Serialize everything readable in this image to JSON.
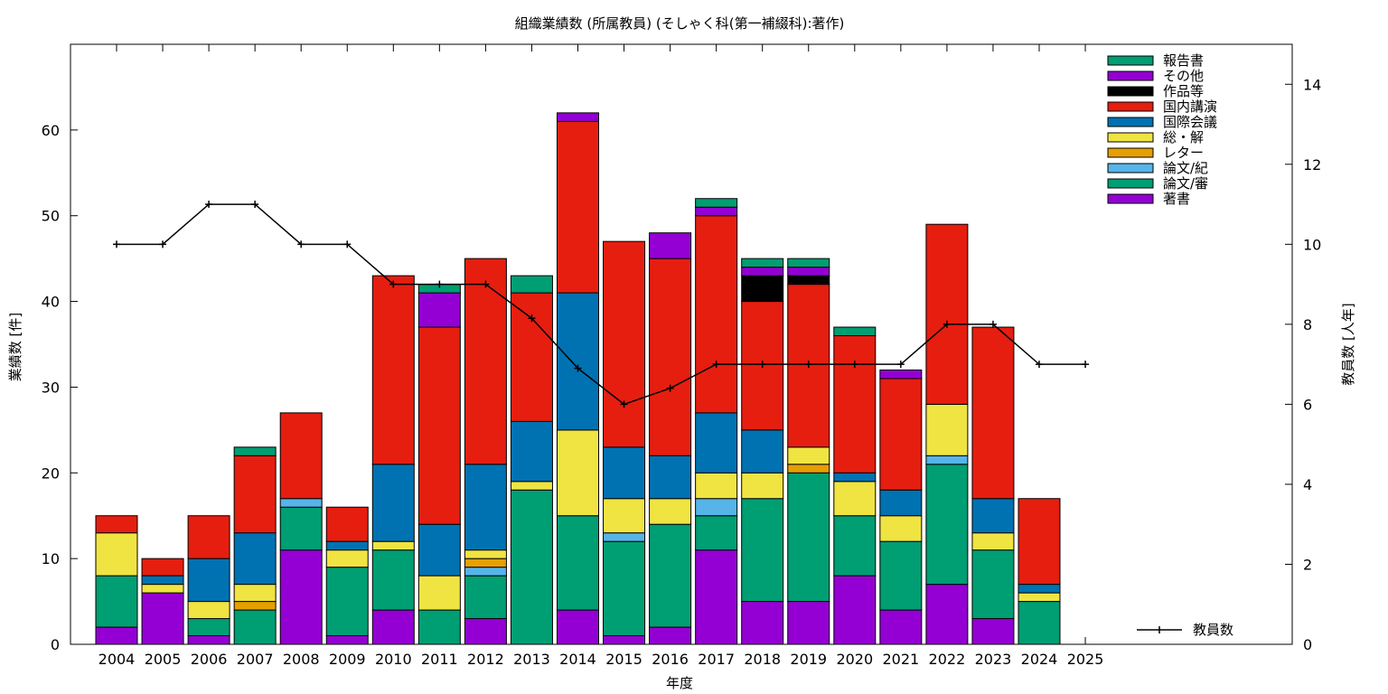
{
  "chart_data": {
    "type": "bar",
    "stacked": true,
    "title": "組織業績数 (所属教員) (そしゃく科(第一補綴科):著作)",
    "xlabel": "年度",
    "ylabel": "業績数 [件]",
    "y2label": "教員数 [人年]",
    "ylim": [
      0,
      70
    ],
    "y2lim": [
      0,
      15
    ],
    "yticks": [
      0,
      10,
      20,
      30,
      40,
      50,
      60
    ],
    "y2ticks": [
      0,
      2,
      4,
      6,
      8,
      10,
      12,
      14
    ],
    "legend_position": "top-right",
    "categories": [
      "2004",
      "2005",
      "2006",
      "2007",
      "2008",
      "2009",
      "2010",
      "2011",
      "2012",
      "2013",
      "2014",
      "2015",
      "2016",
      "2017",
      "2018",
      "2019",
      "2020",
      "2021",
      "2022",
      "2023",
      "2024",
      "2025"
    ],
    "series": [
      {
        "name": "著書",
        "color": "#9400d3",
        "values": [
          2,
          6,
          1,
          0,
          11,
          1,
          4,
          0,
          3,
          0,
          4,
          1,
          2,
          11,
          5,
          5,
          8,
          4,
          7,
          3,
          0,
          0
        ]
      },
      {
        "name": "論文/審",
        "color": "#009e73",
        "values": [
          6,
          0,
          2,
          4,
          5,
          8,
          7,
          4,
          5,
          18,
          11,
          11,
          12,
          4,
          12,
          15,
          7,
          8,
          14,
          8,
          5,
          0
        ]
      },
      {
        "name": "論文/紀",
        "color": "#56b4e9",
        "values": [
          0,
          0,
          0,
          0,
          1,
          0,
          0,
          0,
          1,
          0,
          0,
          1,
          0,
          2,
          0,
          0,
          0,
          0,
          1,
          0,
          0,
          0
        ]
      },
      {
        "name": "レター",
        "color": "#e69f00",
        "values": [
          0,
          0,
          0,
          1,
          0,
          0,
          0,
          0,
          1,
          0,
          0,
          0,
          0,
          0,
          0,
          1,
          0,
          0,
          0,
          0,
          0,
          0
        ]
      },
      {
        "name": "総・解",
        "color": "#f0e442",
        "values": [
          5,
          1,
          2,
          2,
          0,
          2,
          1,
          4,
          1,
          1,
          10,
          4,
          3,
          3,
          3,
          2,
          4,
          3,
          6,
          2,
          1,
          0
        ]
      },
      {
        "name": "国際会議",
        "color": "#0072b2",
        "values": [
          0,
          1,
          5,
          6,
          0,
          1,
          9,
          6,
          10,
          7,
          16,
          6,
          5,
          7,
          5,
          0,
          1,
          3,
          0,
          4,
          1,
          0
        ]
      },
      {
        "name": "国内講演",
        "color": "#e51e10",
        "values": [
          2,
          2,
          5,
          9,
          10,
          4,
          22,
          23,
          24,
          15,
          20,
          24,
          23,
          23,
          15,
          19,
          16,
          13,
          21,
          20,
          10,
          0
        ]
      },
      {
        "name": "作品等",
        "color": "#000000",
        "values": [
          0,
          0,
          0,
          0,
          0,
          0,
          0,
          0,
          0,
          0,
          0,
          0,
          0,
          0,
          3,
          1,
          0,
          0,
          0,
          0,
          0,
          0
        ]
      },
      {
        "name": "その他",
        "color": "#9400d3",
        "values": [
          0,
          0,
          0,
          0,
          0,
          0,
          0,
          4,
          0,
          0,
          1,
          0,
          3,
          1,
          1,
          1,
          0,
          1,
          0,
          0,
          0,
          0
        ]
      },
      {
        "name": "報告書",
        "color": "#009e73",
        "values": [
          0,
          0,
          0,
          1,
          0,
          0,
          0,
          1,
          0,
          2,
          0,
          0,
          0,
          1,
          1,
          1,
          1,
          0,
          0,
          0,
          0,
          0
        ]
      }
    ],
    "line_series": {
      "name": "教員数",
      "axis": "y2",
      "color": "#000000",
      "values": [
        10,
        10,
        11,
        11,
        10,
        10,
        9,
        9,
        9,
        8.15,
        6.9,
        6,
        6.4,
        7,
        7,
        7,
        7,
        7,
        8,
        8,
        7,
        7
      ]
    }
  }
}
